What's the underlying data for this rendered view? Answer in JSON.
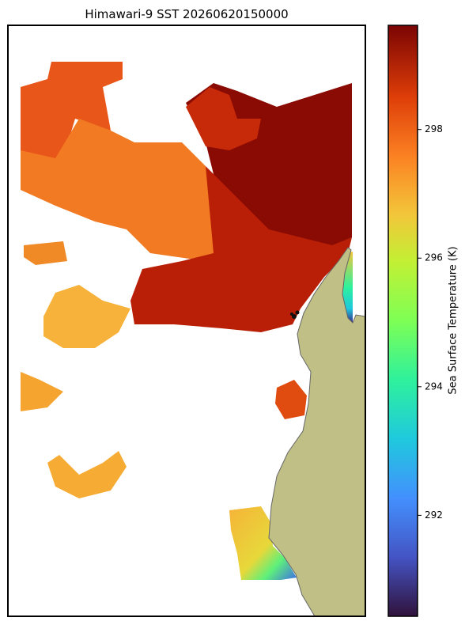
{
  "map": {
    "title": "Himawari-9 SST 20260620150000",
    "colorbar": {
      "label": "Sea Surface Temperature (K)",
      "lim": [
        290.43,
        299.62
      ],
      "ticks": [
        292,
        294,
        296,
        298
      ]
    }
  }
}
